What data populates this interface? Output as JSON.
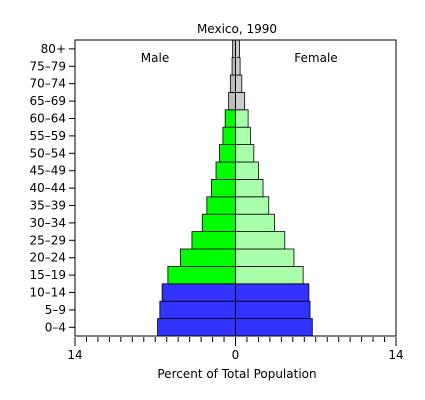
{
  "chart_data": {
    "type": "bar",
    "orientation": "horizontal-population-pyramid",
    "title": "Mexico, 1990",
    "xlabel": "Percent of Total Population",
    "ylabel": "",
    "xlim": [
      -14,
      14
    ],
    "x_ticks": [
      {
        "label": "14",
        "value": -14
      },
      {
        "label": "0",
        "value": 0
      },
      {
        "label": "14",
        "value": 14
      }
    ],
    "categories": [
      "0–4",
      "5–9",
      "10–14",
      "15–19",
      "20–24",
      "25–29",
      "30–34",
      "35–39",
      "40–44",
      "45–49",
      "50–54",
      "55–59",
      "60–64",
      "65–69",
      "70–74",
      "75–79",
      "80+"
    ],
    "series": [
      {
        "name": "Male",
        "values": [
          6.8,
          6.6,
          6.4,
          5.9,
          4.8,
          3.8,
          2.9,
          2.5,
          2.1,
          1.7,
          1.4,
          1.1,
          0.9,
          0.6,
          0.45,
          0.3,
          0.25
        ]
      },
      {
        "name": "Female",
        "values": [
          6.7,
          6.5,
          6.4,
          5.9,
          5.1,
          4.3,
          3.4,
          2.9,
          2.4,
          2.0,
          1.6,
          1.3,
          1.1,
          0.8,
          0.55,
          0.4,
          0.35
        ]
      }
    ],
    "legend_placement": "inside-top",
    "grid": false
  },
  "colors": {
    "youth": "#3333ff",
    "working_male": "#00ff00",
    "working_female": "#aaffaa",
    "elderly_male": "#bbbbbb",
    "elderly_female": "#cccccc",
    "youth_group_count": 3,
    "elderly_group_start": 13
  }
}
